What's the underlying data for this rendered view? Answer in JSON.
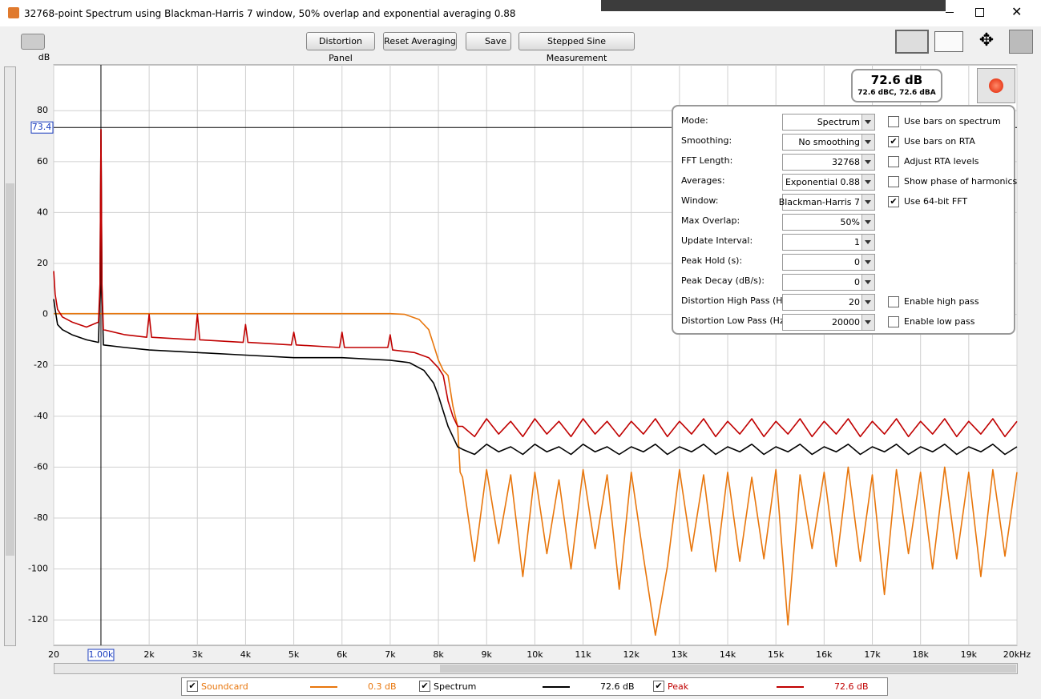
{
  "window": {
    "title": "32768-point Spectrum using Blackman-Harris 7 window, 50% overlap and exponential averaging 0.88"
  },
  "toolbar": {
    "buttons": [
      "Distortion Panel",
      "Reset Averaging",
      "Save",
      "Stepped Sine Measurement"
    ]
  },
  "readout": {
    "main": "72.6 dB",
    "sub": "72.6 dBC, 72.6 dBA"
  },
  "settings": {
    "rows": [
      {
        "label": "Mode:",
        "value": "Spectrum"
      },
      {
        "label": "Smoothing:",
        "value": "No  smoothing"
      },
      {
        "label": "FFT Length:",
        "value": "32768"
      },
      {
        "label": "Averages:",
        "value": "Exponential 0.88"
      },
      {
        "label": "Window:",
        "value": "Blackman-Harris 7"
      },
      {
        "label": "Max Overlap:",
        "value": "50%"
      },
      {
        "label": "Update Interval:",
        "value": "1"
      },
      {
        "label": "Peak Hold (s):",
        "value": "0"
      },
      {
        "label": "Peak Decay (dB/s):",
        "value": "0"
      },
      {
        "label": "Distortion High Pass (Hz):",
        "value": "20"
      },
      {
        "label": "Distortion Low Pass (Hz):",
        "value": "20000"
      }
    ],
    "checkboxes": [
      {
        "label": "Use bars on spectrum",
        "checked": false
      },
      {
        "label": "Use bars on RTA",
        "checked": true
      },
      {
        "label": "Adjust RTA levels",
        "checked": false
      },
      {
        "label": "Show phase of harmonics",
        "checked": false
      },
      {
        "label": "Use 64-bit FFT",
        "checked": true
      },
      {
        "label": "Enable high pass",
        "checked": false
      },
      {
        "label": "Enable low pass",
        "checked": false
      }
    ]
  },
  "chart_data": {
    "type": "line",
    "y_label": "dB",
    "xlim": [
      20,
      20000
    ],
    "ylim": [
      -130,
      98
    ],
    "xticks": [
      20,
      {
        "value": 2000,
        "label": "2k"
      },
      {
        "value": 3000,
        "label": "3k"
      },
      {
        "value": 4000,
        "label": "4k"
      },
      {
        "value": 5000,
        "label": "5k"
      },
      {
        "value": 6000,
        "label": "6k"
      },
      {
        "value": 7000,
        "label": "7k"
      },
      {
        "value": 8000,
        "label": "8k"
      },
      {
        "value": 9000,
        "label": "9k"
      },
      {
        "value": 10000,
        "label": "10k"
      },
      {
        "value": 11000,
        "label": "11k"
      },
      {
        "value": 12000,
        "label": "12k"
      },
      {
        "value": 13000,
        "label": "13k"
      },
      {
        "value": 14000,
        "label": "14k"
      },
      {
        "value": 15000,
        "label": "15k"
      },
      {
        "value": 16000,
        "label": "16k"
      },
      {
        "value": 17000,
        "label": "17k"
      },
      {
        "value": 18000,
        "label": "18k"
      },
      {
        "value": 19000,
        "label": "19k"
      },
      {
        "value": 20000,
        "label": "20kHz"
      }
    ],
    "yticks": [
      80,
      60,
      40,
      20,
      0,
      -20,
      -40,
      -60,
      -80,
      -100,
      -120
    ],
    "grid": true,
    "cursor": {
      "x": {
        "value": 1000,
        "label": "1.00k"
      },
      "y": 73.4
    },
    "series": [
      {
        "name": "Soundcard",
        "color": "#e8760c",
        "readout": "0.3 dB",
        "checked": true,
        "x": [
          20,
          500,
          1000,
          2000,
          4000,
          6000,
          7000,
          7300,
          7600,
          7800,
          7900,
          8000,
          8100,
          8200,
          8300,
          8400,
          8450,
          8500,
          8750,
          9000,
          9250,
          9500,
          9750,
          10000,
          10250,
          10500,
          10750,
          11000,
          11250,
          11500,
          11750,
          12000,
          12250,
          12500,
          12750,
          13000,
          13250,
          13500,
          13750,
          14000,
          14250,
          14500,
          14750,
          15000,
          15250,
          15500,
          15750,
          16000,
          16250,
          16500,
          16750,
          17000,
          17250,
          17500,
          17750,
          18000,
          18250,
          18500,
          18750,
          19000,
          19250,
          19500,
          19750,
          20000
        ],
        "values": [
          0.3,
          0.3,
          0.3,
          0.3,
          0.3,
          0.3,
          0.3,
          0,
          -2,
          -6,
          -12,
          -18,
          -22,
          -24,
          -36,
          -44,
          -62,
          -64,
          -97,
          -61,
          -90,
          -63,
          -103,
          -62,
          -94,
          -65,
          -100,
          -61,
          -92,
          -63,
          -108,
          -62,
          -95,
          -126,
          -99,
          -61,
          -93,
          -63,
          -101,
          -62,
          -97,
          -64,
          -96,
          -61,
          -122,
          -63,
          -92,
          -62,
          -99,
          -60,
          -97,
          -63,
          -110,
          -61,
          -94,
          -62,
          -100,
          -60,
          -96,
          -62,
          -103,
          -61,
          -95,
          -62
        ]
      },
      {
        "name": "Spectrum",
        "color": "#000000",
        "readout": "72.6 dB",
        "checked": true,
        "x": [
          20,
          50,
          100,
          200,
          400,
          700,
          950,
          980,
          1000,
          1020,
          1050,
          1500,
          2000,
          3000,
          4000,
          5000,
          6000,
          7000,
          7400,
          7700,
          7900,
          8000,
          8100,
          8200,
          8300,
          8400,
          8500,
          8750,
          9000,
          9250,
          9500,
          9750,
          10000,
          10250,
          10500,
          10750,
          11000,
          11250,
          11500,
          11750,
          12000,
          12250,
          12500,
          12750,
          13000,
          13250,
          13500,
          13750,
          14000,
          14250,
          14500,
          14750,
          15000,
          15250,
          15500,
          15750,
          16000,
          16250,
          16500,
          16750,
          17000,
          17250,
          17500,
          17750,
          18000,
          18250,
          18500,
          18750,
          19000,
          19250,
          19500,
          19750,
          20000
        ],
        "values": [
          6,
          2,
          -4,
          -6,
          -8,
          -10,
          -11,
          10,
          72.6,
          10,
          -12,
          -13,
          -14,
          -15,
          -16,
          -17,
          -17,
          -18,
          -19,
          -22,
          -27,
          -32,
          -38,
          -44,
          -48,
          -52,
          -53,
          -55,
          -51,
          -54,
          -52,
          -55,
          -51,
          -54,
          -52,
          -55,
          -51,
          -54,
          -52,
          -55,
          -52,
          -54,
          -51,
          -55,
          -52,
          -54,
          -51,
          -55,
          -52,
          -54,
          -51,
          -55,
          -52,
          -54,
          -51,
          -55,
          -52,
          -54,
          -51,
          -55,
          -52,
          -54,
          -51,
          -55,
          -52,
          -54,
          -51,
          -55,
          -52,
          -54,
          -51,
          -55,
          -52
        ]
      },
      {
        "name": "Peak",
        "color": "#c00000",
        "readout": "72.6 dB",
        "checked": true,
        "x": [
          20,
          50,
          100,
          200,
          400,
          700,
          950,
          980,
          1000,
          1020,
          1050,
          1500,
          1950,
          2000,
          2050,
          2950,
          3000,
          3050,
          3950,
          4000,
          4050,
          4950,
          5000,
          5050,
          5950,
          6000,
          6050,
          6950,
          7000,
          7050,
          7500,
          7800,
          8000,
          8100,
          8200,
          8300,
          8400,
          8500,
          8750,
          9000,
          9250,
          9500,
          9750,
          10000,
          10250,
          10500,
          10750,
          11000,
          11250,
          11500,
          11750,
          12000,
          12250,
          12500,
          12750,
          13000,
          13250,
          13500,
          13750,
          14000,
          14250,
          14500,
          14750,
          15000,
          15250,
          15500,
          15750,
          16000,
          16250,
          16500,
          16750,
          17000,
          17250,
          17500,
          17750,
          18000,
          18250,
          18500,
          18750,
          19000,
          19250,
          19500,
          19750,
          20000
        ],
        "values": [
          17,
          8,
          2,
          -1,
          -3,
          -5,
          -3,
          12,
          72.6,
          12,
          -6,
          -8,
          -9,
          0,
          -9,
          -10,
          0,
          -10,
          -11,
          -4,
          -11,
          -12,
          -7,
          -12,
          -13,
          -7,
          -13,
          -13,
          -8,
          -14,
          -15,
          -17,
          -21,
          -24,
          -34,
          -40,
          -44,
          -44,
          -48,
          -41,
          -47,
          -42,
          -48,
          -41,
          -47,
          -42,
          -48,
          -41,
          -47,
          -42,
          -48,
          -42,
          -47,
          -41,
          -48,
          -42,
          -47,
          -41,
          -48,
          -42,
          -47,
          -41,
          -48,
          -42,
          -47,
          -41,
          -48,
          -42,
          -47,
          -41,
          -48,
          -42,
          -47,
          -41,
          -48,
          -42,
          -47,
          -41,
          -48,
          -42,
          -47,
          -41,
          -48,
          -42
        ]
      }
    ]
  }
}
